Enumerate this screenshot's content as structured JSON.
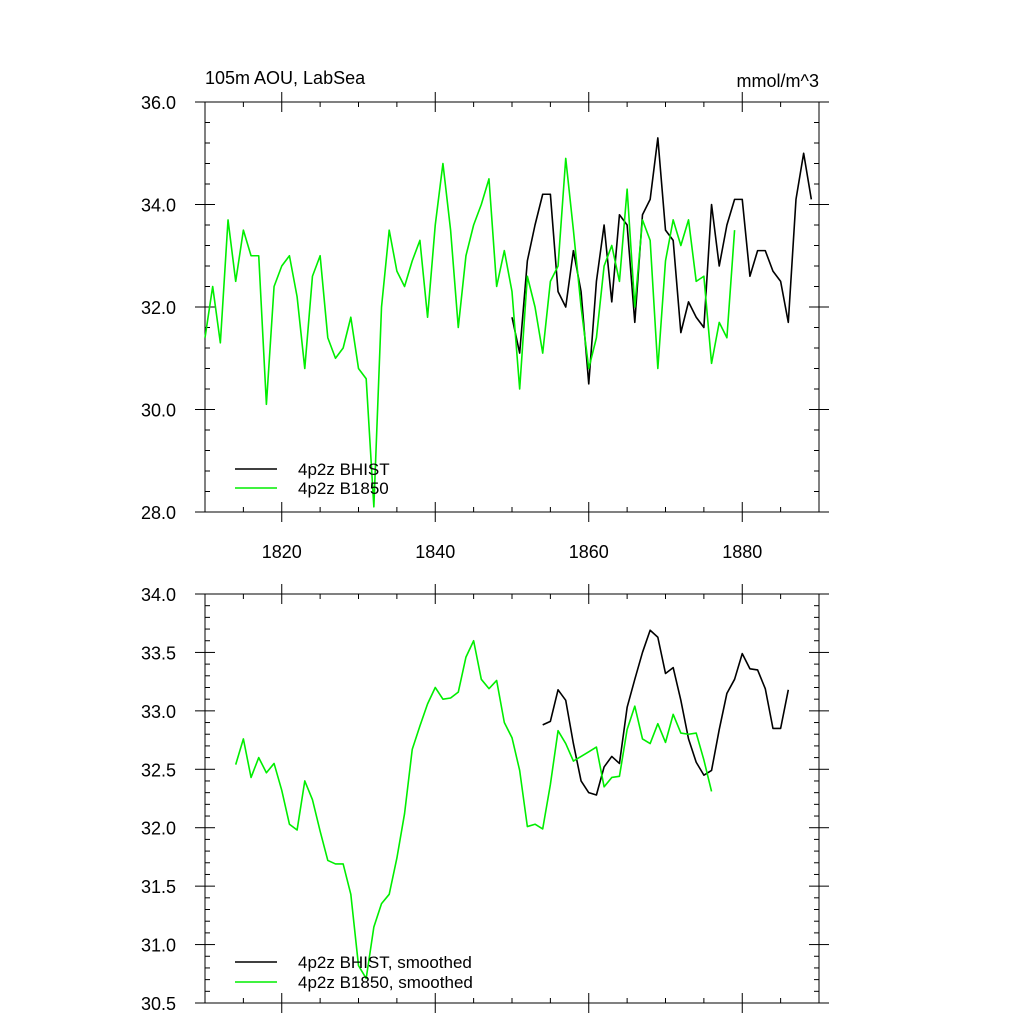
{
  "chart_data": [
    {
      "type": "line",
      "title": "105m AOU, LabSea",
      "units": "mmol/m^3",
      "xlim": [
        1810,
        1890
      ],
      "ylim": [
        28.0,
        36.0
      ],
      "yticks": [
        28.0,
        30.0,
        32.0,
        34.0,
        36.0
      ],
      "ytick_labels": [
        "28.0",
        "30.0",
        "32.0",
        "34.0",
        "36.0"
      ],
      "xticks": [
        1820,
        1840,
        1860,
        1880
      ],
      "xtick_labels": [
        "1820",
        "1840",
        "1860",
        "1880"
      ],
      "grid": false,
      "legend_position": "bottom-left",
      "series": [
        {
          "name": "4p2z BHIST",
          "color": "#000000",
          "x": [
            1850,
            1851,
            1852,
            1853,
            1854,
            1855,
            1856,
            1857,
            1858,
            1859,
            1860,
            1861,
            1862,
            1863,
            1864,
            1865,
            1866,
            1867,
            1868,
            1869,
            1870,
            1871,
            1872,
            1873,
            1874,
            1875,
            1876,
            1877,
            1878,
            1879,
            1880,
            1881,
            1882,
            1883,
            1884,
            1885,
            1886,
            1887,
            1888,
            1889
          ],
          "y": [
            31.8,
            31.1,
            32.9,
            33.6,
            34.2,
            34.2,
            32.3,
            32.0,
            33.1,
            32.3,
            30.5,
            32.5,
            33.6,
            32.1,
            33.8,
            33.6,
            31.7,
            33.8,
            34.1,
            35.3,
            33.5,
            33.3,
            31.5,
            32.1,
            31.8,
            31.6,
            34.0,
            32.8,
            33.6,
            34.1,
            34.1,
            32.6,
            33.1,
            33.1,
            32.7,
            32.5,
            31.7,
            34.1,
            35.0,
            34.1
          ]
        },
        {
          "name": "4p2z B1850",
          "color": "#00ee00",
          "x": [
            1810,
            1811,
            1812,
            1813,
            1814,
            1815,
            1816,
            1817,
            1818,
            1819,
            1820,
            1821,
            1822,
            1823,
            1824,
            1825,
            1826,
            1827,
            1828,
            1829,
            1830,
            1831,
            1832,
            1833,
            1834,
            1835,
            1836,
            1837,
            1838,
            1839,
            1840,
            1841,
            1842,
            1843,
            1844,
            1845,
            1846,
            1847,
            1848,
            1849,
            1850,
            1851,
            1852,
            1853,
            1854,
            1855,
            1856,
            1857,
            1858,
            1859,
            1860,
            1861,
            1862,
            1863,
            1864,
            1865,
            1866,
            1867,
            1868,
            1869,
            1870,
            1871,
            1872,
            1873,
            1874,
            1875,
            1876,
            1877,
            1878,
            1879
          ],
          "y": [
            31.4,
            32.4,
            31.3,
            33.7,
            32.5,
            33.5,
            33.0,
            33.0,
            30.1,
            32.4,
            32.8,
            33.0,
            32.2,
            30.8,
            32.6,
            33.0,
            31.4,
            31.0,
            31.2,
            31.8,
            30.8,
            30.6,
            28.1,
            32.0,
            33.5,
            32.7,
            32.4,
            32.9,
            33.3,
            31.8,
            33.6,
            34.8,
            33.5,
            31.6,
            33.0,
            33.6,
            34.0,
            34.5,
            32.4,
            33.1,
            32.3,
            30.4,
            32.6,
            32.0,
            31.1,
            32.5,
            32.8,
            34.9,
            33.5,
            32.0,
            30.8,
            31.4,
            32.8,
            33.2,
            32.5,
            34.3,
            32.0,
            33.7,
            33.3,
            30.8,
            32.9,
            33.7,
            33.2,
            33.7,
            32.5,
            32.6,
            30.9,
            31.7,
            31.4,
            33.5
          ]
        }
      ]
    },
    {
      "type": "line",
      "xlim": [
        1810,
        1890
      ],
      "ylim": [
        30.5,
        34.0
      ],
      "yticks": [
        30.5,
        31.0,
        31.5,
        32.0,
        32.5,
        33.0,
        33.5,
        34.0
      ],
      "ytick_labels": [
        "30.5",
        "31.0",
        "31.5",
        "32.0",
        "32.5",
        "33.0",
        "33.5",
        "34.0"
      ],
      "xticks": [
        1820,
        1840,
        1860,
        1880
      ],
      "grid": false,
      "legend_position": "bottom-left",
      "series": [
        {
          "name": "4p2z BHIST, smoothed",
          "color": "#000000",
          "x": [
            1854,
            1855,
            1856,
            1857,
            1858,
            1859,
            1860,
            1861,
            1862,
            1863,
            1864,
            1865,
            1866,
            1867,
            1868,
            1869,
            1870,
            1871,
            1872,
            1873,
            1874,
            1875,
            1876,
            1877,
            1878,
            1879,
            1880,
            1881,
            1882,
            1883,
            1884,
            1885,
            1886
          ],
          "y": [
            32.88,
            32.91,
            33.18,
            33.09,
            32.72,
            32.4,
            32.3,
            32.28,
            32.52,
            32.61,
            32.55,
            33.03,
            33.27,
            33.5,
            33.69,
            33.63,
            33.32,
            33.37,
            33.09,
            32.76,
            32.56,
            32.45,
            32.49,
            32.84,
            33.15,
            33.27,
            33.49,
            33.36,
            33.35,
            33.19,
            32.85,
            32.85,
            33.18
          ]
        },
        {
          "name": "4p2z B1850, smoothed",
          "color": "#00ee00",
          "x": [
            1814,
            1815,
            1816,
            1817,
            1818,
            1819,
            1820,
            1821,
            1822,
            1823,
            1824,
            1825,
            1826,
            1827,
            1828,
            1829,
            1830,
            1831,
            1832,
            1833,
            1834,
            1835,
            1836,
            1837,
            1838,
            1839,
            1840,
            1841,
            1842,
            1843,
            1844,
            1845,
            1846,
            1847,
            1848,
            1849,
            1850,
            1851,
            1852,
            1853,
            1854,
            1855,
            1856,
            1857,
            1858,
            1859,
            1860,
            1861,
            1862,
            1863,
            1864,
            1865,
            1866,
            1867,
            1868,
            1869,
            1870,
            1871,
            1872,
            1873,
            1874,
            1875,
            1876
          ],
          "y": [
            32.54,
            32.76,
            32.43,
            32.6,
            32.47,
            32.55,
            32.32,
            32.03,
            31.98,
            32.4,
            32.24,
            31.97,
            31.72,
            31.69,
            31.69,
            31.43,
            30.82,
            30.71,
            31.15,
            31.35,
            31.43,
            31.74,
            32.12,
            32.67,
            32.87,
            33.06,
            33.2,
            33.1,
            33.11,
            33.16,
            33.46,
            33.6,
            33.27,
            33.19,
            33.26,
            32.9,
            32.77,
            32.49,
            32.01,
            32.03,
            31.99,
            32.37,
            32.83,
            32.72,
            32.57,
            32.61,
            32.65,
            32.69,
            32.35,
            32.43,
            32.44,
            32.84,
            33.04,
            32.76,
            32.72,
            32.89,
            32.73,
            32.97,
            32.81,
            32.8,
            32.81,
            32.58,
            32.31
          ]
        }
      ]
    }
  ]
}
